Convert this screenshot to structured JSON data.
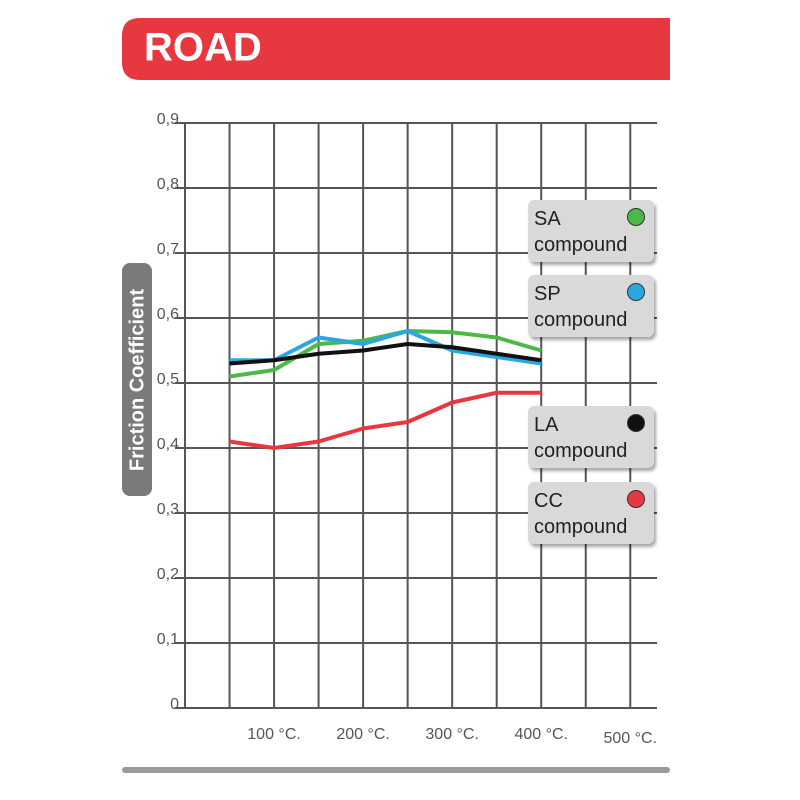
{
  "chart_data": {
    "type": "line",
    "title": "ROAD",
    "y_label": "Friction Coefficient",
    "x": [
      50,
      100,
      150,
      200,
      250,
      300,
      350,
      400
    ],
    "series": [
      {
        "name": "SA compound",
        "color": "#4cb847",
        "values": [
          0.51,
          0.52,
          0.56,
          0.565,
          0.58,
          0.578,
          0.57,
          0.55
        ]
      },
      {
        "name": "SP compound",
        "color": "#29a8e0",
        "values": [
          0.535,
          0.535,
          0.57,
          0.56,
          0.58,
          0.55,
          0.54,
          0.53
        ]
      },
      {
        "name": "LA compound",
        "color": "#111111",
        "values": [
          0.53,
          0.535,
          0.545,
          0.55,
          0.56,
          0.555,
          0.545,
          0.535
        ]
      },
      {
        "name": "CC compound",
        "color": "#e8383f",
        "values": [
          0.41,
          0.4,
          0.41,
          0.43,
          0.44,
          0.47,
          0.485,
          0.485
        ]
      }
    ],
    "xlim": [
      0,
      530
    ],
    "ylim": [
      0,
      0.9
    ],
    "xticks": [
      {
        "value": 100,
        "label": "100 °C."
      },
      {
        "value": 200,
        "label": "200 °C."
      },
      {
        "value": 300,
        "label": "300 °C."
      },
      {
        "value": 400,
        "label": "400 °C."
      },
      {
        "value": 500,
        "label": "500 °C."
      }
    ],
    "xgrid": [
      0,
      50,
      100,
      150,
      200,
      250,
      300,
      350,
      400,
      450,
      500
    ],
    "yticks": [
      0,
      {
        "value": 0.1,
        "label": "0,1"
      },
      {
        "value": 0.2,
        "label": "0,2"
      },
      {
        "value": 0.3,
        "label": "0,3"
      },
      {
        "value": 0.4,
        "label": "0,4"
      },
      {
        "value": 0.5,
        "label": "0,5"
      },
      {
        "value": 0.6,
        "label": "0,6"
      },
      {
        "value": 0.7,
        "label": "0,7"
      },
      {
        "value": 0.8,
        "label": "0,8"
      },
      {
        "value": 0.9,
        "label": "0,9"
      }
    ],
    "grid": true
  }
}
